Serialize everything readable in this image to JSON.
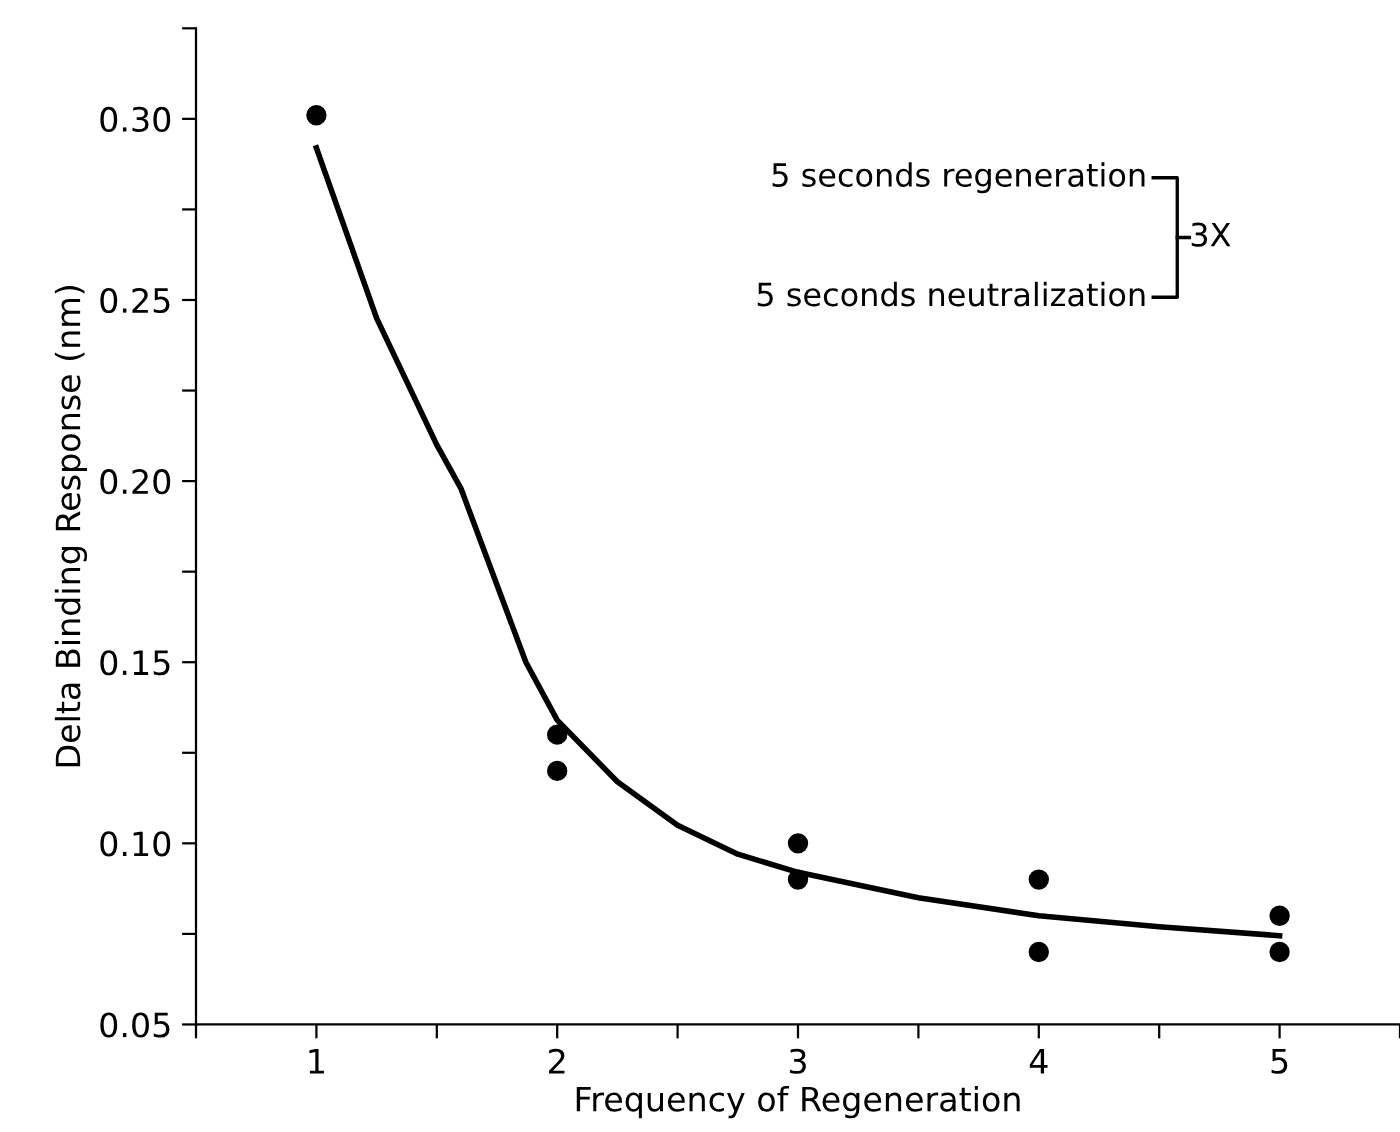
{
  "chart_data": {
    "type": "scatter",
    "xlabel": "Frequency of Regeneration",
    "ylabel": "Delta Binding Response (nm)",
    "series": [
      {
        "color": "#000000",
        "marker": "circle",
        "x": [
          1,
          2,
          2,
          3,
          3,
          4,
          4,
          5,
          5
        ],
        "values": [
          0.301,
          0.13,
          0.12,
          0.1,
          0.09,
          0.09,
          0.07,
          0.08,
          0.07
        ]
      },
      {
        "type": "line",
        "color": "#000000",
        "marker": "none",
        "line_style": "solid",
        "x": [
          1,
          1.25,
          1.5,
          1.6,
          1.87,
          2,
          2.25,
          2.5,
          2.75,
          3,
          3.5,
          4,
          4.5,
          5
        ],
        "values": [
          0.292,
          0.245,
          0.21,
          0.198,
          0.15,
          0.134,
          0.117,
          0.105,
          0.097,
          0.092,
          0.085,
          0.08,
          0.077,
          0.0745
        ]
      }
    ],
    "xlim": [
      0.5,
      5.5
    ],
    "xticks": [
      {
        "value": 0.5,
        "label": null
      },
      1,
      {
        "value": 1.5,
        "label": null
      },
      2,
      {
        "value": 2.5,
        "label": null
      },
      3,
      {
        "value": 3.5,
        "label": null
      },
      4,
      {
        "value": 4.5,
        "label": null
      },
      5,
      {
        "value": 5.5,
        "label": null
      }
    ],
    "ylim": [
      0.05,
      0.325
    ],
    "yticks": [
      {
        "value": 0.05,
        "label": "0.05"
      },
      {
        "value": 0.075,
        "label": null
      },
      {
        "value": 0.1,
        "label": "0.10"
      },
      {
        "value": 0.125,
        "label": null
      },
      {
        "value": 0.15,
        "label": "0.15"
      },
      {
        "value": 0.175,
        "label": null
      },
      {
        "value": 0.2,
        "label": "0.20"
      },
      {
        "value": 0.225,
        "label": null
      },
      {
        "value": 0.25,
        "label": "0.25"
      },
      {
        "value": 0.275,
        "label": null
      },
      {
        "value": 0.3,
        "label": "0.30"
      },
      {
        "value": 0.325,
        "label": null
      }
    ],
    "grid": false,
    "legend": false,
    "annotations": [
      "5 seconds regeneration",
      "5 seconds neutralization",
      "3X"
    ]
  }
}
